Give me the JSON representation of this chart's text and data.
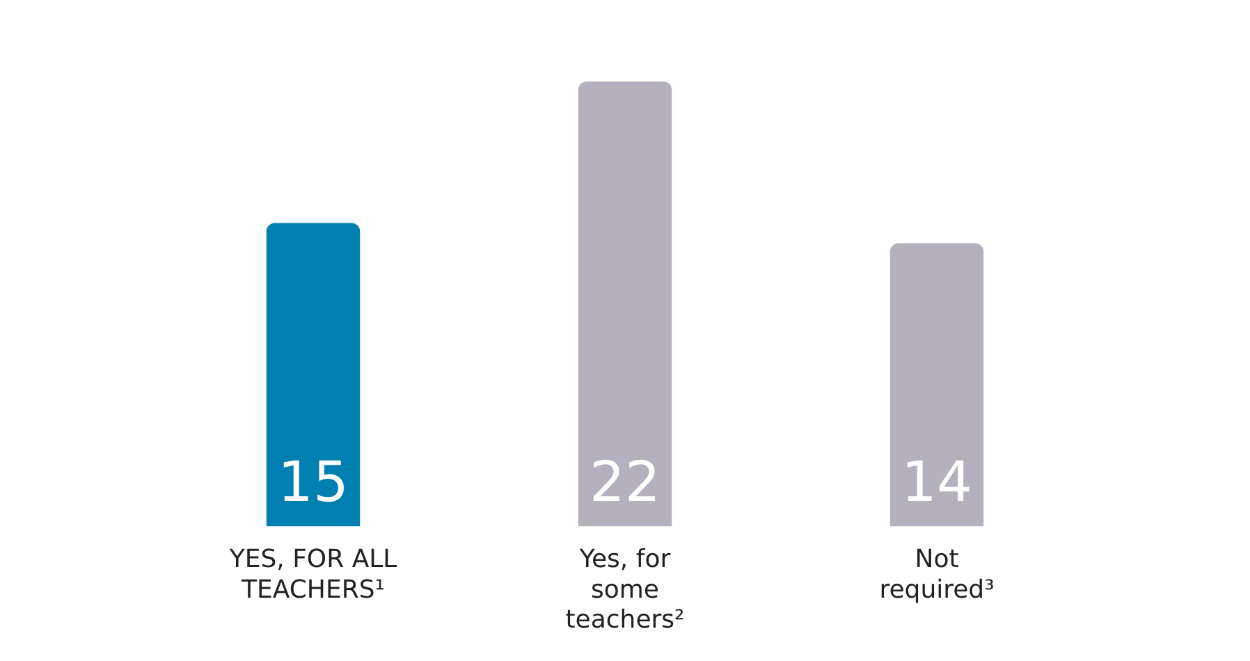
{
  "chart_data": {
    "type": "bar",
    "categories": [
      "YES, FOR ALL TEACHERS¹",
      "Yes, for some teachers²",
      "Not required³"
    ],
    "values": [
      15,
      22,
      14
    ],
    "colors": [
      "#0080b0",
      "#b5b0bd",
      "#b5b0bd"
    ],
    "data_labels": true,
    "grid": false,
    "legend": false
  }
}
